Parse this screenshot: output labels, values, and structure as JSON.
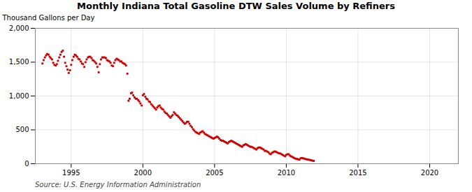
{
  "chart_data": {
    "type": "scatter",
    "title": "Monthly Indiana Total Gasoline DTW Sales Volume by Refiners",
    "ylabel": "Thousand Gallons per Day",
    "source": "Source: U.S. Energy Information Administration",
    "color": "#cc0000",
    "marker": "square",
    "grid": true,
    "xlim": [
      1992.5,
      2022.0
    ],
    "xticks": [
      1995,
      2000,
      2005,
      2010,
      2015,
      2020
    ],
    "ylim": [
      0,
      2000
    ],
    "yticks": [
      0,
      500,
      {
        "value": 1000,
        "label": "1,000"
      },
      {
        "value": 1500,
        "label": "1,500"
      },
      {
        "value": 2000,
        "label": "2,000"
      }
    ],
    "x": [
      1993.0,
      1993.08,
      1993.17,
      1993.25,
      1993.33,
      1993.42,
      1993.5,
      1993.58,
      1993.67,
      1993.75,
      1993.83,
      1993.92,
      1994.0,
      1994.08,
      1994.17,
      1994.25,
      1994.33,
      1994.42,
      1994.5,
      1994.58,
      1994.67,
      1994.75,
      1994.83,
      1994.92,
      1995.0,
      1995.08,
      1995.17,
      1995.25,
      1995.33,
      1995.42,
      1995.5,
      1995.58,
      1995.67,
      1995.75,
      1995.83,
      1995.92,
      1996.0,
      1996.08,
      1996.17,
      1996.25,
      1996.33,
      1996.42,
      1996.5,
      1996.58,
      1996.67,
      1996.75,
      1996.83,
      1996.92,
      1997.0,
      1997.08,
      1997.17,
      1997.25,
      1997.33,
      1997.42,
      1997.5,
      1997.58,
      1997.67,
      1997.75,
      1997.83,
      1997.92,
      1998.0,
      1998.08,
      1998.17,
      1998.25,
      1998.33,
      1998.42,
      1998.5,
      1998.58,
      1998.67,
      1998.75,
      1998.83,
      1998.92,
      1999.0,
      1999.08,
      1999.17,
      1999.25,
      1999.33,
      1999.42,
      1999.5,
      1999.58,
      1999.67,
      1999.75,
      1999.83,
      1999.92,
      2000.0,
      2000.08,
      2000.17,
      2000.25,
      2000.33,
      2000.42,
      2000.5,
      2000.58,
      2000.67,
      2000.75,
      2000.83,
      2000.92,
      2001.0,
      2001.08,
      2001.17,
      2001.25,
      2001.33,
      2001.42,
      2001.5,
      2001.58,
      2001.67,
      2001.75,
      2001.83,
      2001.92,
      2002.0,
      2002.08,
      2002.17,
      2002.25,
      2002.33,
      2002.42,
      2002.5,
      2002.58,
      2002.67,
      2002.75,
      2002.83,
      2002.92,
      2003.0,
      2003.08,
      2003.17,
      2003.25,
      2003.33,
      2003.42,
      2003.5,
      2003.58,
      2003.67,
      2003.75,
      2003.83,
      2003.92,
      2004.0,
      2004.08,
      2004.17,
      2004.25,
      2004.33,
      2004.42,
      2004.5,
      2004.58,
      2004.67,
      2004.75,
      2004.83,
      2004.92,
      2005.0,
      2005.08,
      2005.17,
      2005.25,
      2005.33,
      2005.42,
      2005.5,
      2005.58,
      2005.67,
      2005.75,
      2005.83,
      2005.92,
      2006.0,
      2006.08,
      2006.17,
      2006.25,
      2006.33,
      2006.42,
      2006.5,
      2006.58,
      2006.67,
      2006.75,
      2006.83,
      2006.92,
      2007.0,
      2007.08,
      2007.17,
      2007.25,
      2007.33,
      2007.42,
      2007.5,
      2007.58,
      2007.67,
      2007.75,
      2007.83,
      2007.92,
      2008.0,
      2008.08,
      2008.17,
      2008.25,
      2008.33,
      2008.42,
      2008.5,
      2008.58,
      2008.67,
      2008.75,
      2008.83,
      2008.92,
      2009.0,
      2009.08,
      2009.17,
      2009.25,
      2009.33,
      2009.42,
      2009.5,
      2009.58,
      2009.67,
      2009.75,
      2009.83,
      2009.92,
      2010.0,
      2010.08,
      2010.17,
      2010.25,
      2010.33,
      2010.42,
      2010.5,
      2010.58,
      2010.67,
      2010.75,
      2010.83,
      2010.92,
      2011.0,
      2011.08,
      2011.17,
      2011.25,
      2011.33,
      2011.42,
      2011.5,
      2011.58,
      2011.67,
      2011.75,
      2011.83,
      2011.92
    ],
    "values": [
      1480,
      1530,
      1570,
      1600,
      1620,
      1610,
      1580,
      1560,
      1540,
      1490,
      1460,
      1450,
      1470,
      1520,
      1570,
      1610,
      1650,
      1670,
      1580,
      1490,
      1440,
      1390,
      1340,
      1380,
      1460,
      1530,
      1580,
      1610,
      1600,
      1580,
      1550,
      1540,
      1510,
      1480,
      1470,
      1430,
      1500,
      1540,
      1570,
      1580,
      1580,
      1560,
      1530,
      1520,
      1500,
      1480,
      1430,
      1350,
      1470,
      1540,
      1570,
      1570,
      1570,
      1560,
      1530,
      1520,
      1510,
      1490,
      1450,
      1440,
      1490,
      1530,
      1550,
      1540,
      1530,
      1510,
      1510,
      1490,
      1480,
      1470,
      1450,
      1330,
      930,
      960,
      1040,
      1050,
      1010,
      980,
      960,
      960,
      940,
      920,
      890,
      860,
      1010,
      1030,
      990,
      960,
      950,
      920,
      910,
      880,
      860,
      840,
      820,
      800,
      830,
      850,
      860,
      830,
      810,
      800,
      770,
      750,
      740,
      720,
      700,
      680,
      700,
      720,
      760,
      740,
      720,
      710,
      690,
      670,
      650,
      630,
      610,
      590,
      600,
      620,
      620,
      590,
      560,
      540,
      510,
      490,
      470,
      460,
      450,
      440,
      460,
      470,
      480,
      460,
      440,
      430,
      420,
      410,
      400,
      390,
      380,
      370,
      380,
      390,
      400,
      390,
      370,
      350,
      340,
      340,
      330,
      320,
      310,
      300,
      320,
      330,
      340,
      330,
      320,
      310,
      300,
      290,
      280,
      270,
      260,
      250,
      270,
      280,
      290,
      280,
      270,
      260,
      250,
      250,
      240,
      230,
      220,
      210,
      230,
      240,
      240,
      230,
      220,
      210,
      190,
      190,
      180,
      170,
      150,
      140,
      160,
      170,
      180,
      180,
      170,
      160,
      155,
      150,
      140,
      130,
      120,
      110,
      130,
      140,
      140,
      120,
      110,
      100,
      90,
      80,
      75,
      70,
      65,
      60,
      80,
      85,
      80,
      75,
      70,
      65,
      62,
      58,
      55,
      50,
      45,
      42
    ]
  }
}
